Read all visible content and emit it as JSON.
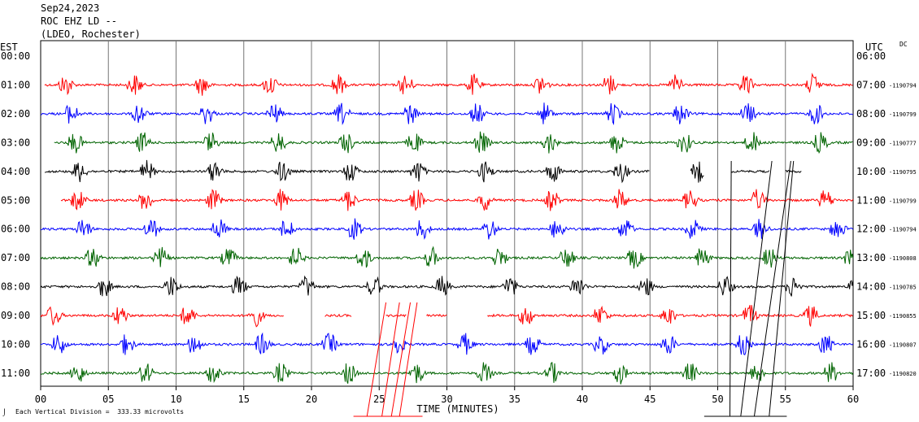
{
  "header": {
    "date": "Sep24,2023",
    "station": "ROC EHZ LD --",
    "network": "(LDEO, Rochester)"
  },
  "left_zone": "EST",
  "right_zone": "UTC",
  "dc_label": "DC",
  "footer": {
    "scale_note": "Each Vertical Division =  333.33 microvolts"
  },
  "colors": {
    "cycle": [
      "#ff0000",
      "#0000ff",
      "#006400",
      "#000000"
    ],
    "grid": "#777777",
    "glitch": "#ff0000",
    "glitch_late": "#000000"
  },
  "chart_data": {
    "type": "line",
    "title": "Sep24,2023 ROC EHZ LD -- (LDEO, Rochester)",
    "xlabel": "TIME (MINUTES)",
    "ylabel": "",
    "xlim": [
      0,
      60
    ],
    "x_ticks": [
      "00",
      "05",
      "10",
      "15",
      "20",
      "25",
      "30",
      "35",
      "40",
      "45",
      "50",
      "55",
      "60"
    ],
    "rows": [
      {
        "est": "00:00",
        "utc": "06:00",
        "offset": "",
        "color": "#ff0000",
        "segments": []
      },
      {
        "est": "01:00",
        "utc": "07:00",
        "offset": "-1190794",
        "color": "#ff0000",
        "segments": [
          [
            0.3,
            60
          ]
        ],
        "bursts": [
          1.5,
          6.6,
          11.6,
          16.6,
          21.6,
          26.6,
          31.6,
          36.6,
          41.6,
          46.6,
          51.7,
          56.7
        ]
      },
      {
        "est": "02:00",
        "utc": "08:00",
        "offset": "-1190799",
        "color": "#0000ff",
        "segments": [
          [
            0,
            60
          ]
        ],
        "bursts": [
          1.9,
          6.9,
          11.9,
          16.9,
          21.9,
          26.9,
          31.9,
          36.9,
          41.9,
          46.9,
          51.9,
          56.9
        ]
      },
      {
        "est": "03:00",
        "utc": "09:00",
        "offset": "-1190777",
        "color": "#006400",
        "segments": [
          [
            1,
            60
          ]
        ],
        "bursts": [
          2.2,
          7.2,
          12.2,
          17.2,
          22.2,
          27.2,
          32.2,
          37.2,
          42.2,
          47.2,
          52.2,
          57.2
        ]
      },
      {
        "est": "04:00",
        "utc": "10:00",
        "offset": "-1190795",
        "color": "#000000",
        "segments": [
          [
            0.3,
            45
          ],
          [
            48,
            49
          ],
          [
            51,
            53.8
          ],
          [
            55,
            56.2
          ]
        ],
        "bursts": [
          2.5,
          7.5,
          12.5,
          17.5,
          22.5,
          27.5,
          32.5,
          37.5,
          42.5,
          48.2
        ]
      },
      {
        "est": "05:00",
        "utc": "11:00",
        "offset": "-1190799",
        "color": "#ff0000",
        "segments": [
          [
            1.5,
            60
          ]
        ],
        "bursts": [
          2.4,
          7.4,
          12.4,
          17.4,
          22.4,
          27.4,
          32.4,
          37.4,
          42.4,
          47.6,
          52.6,
          57.6
        ]
      },
      {
        "est": "06:00",
        "utc": "12:00",
        "offset": "-1190794",
        "color": "#0000ff",
        "segments": [
          [
            0,
            60
          ]
        ],
        "bursts": [
          2.8,
          7.8,
          12.8,
          17.8,
          22.8,
          27.8,
          32.8,
          37.8,
          42.8,
          47.8,
          52.8,
          58.5
        ]
      },
      {
        "est": "07:00",
        "utc": "13:00",
        "offset": "-1190808",
        "color": "#006400",
        "segments": [
          [
            0,
            60
          ]
        ],
        "bursts": [
          3.5,
          8.5,
          13.5,
          18.5,
          23.5,
          28.5,
          33.5,
          38.5,
          43.5,
          48.5,
          53.5,
          59.5
        ]
      },
      {
        "est": "08:00",
        "utc": "14:00",
        "offset": "-1190785",
        "color": "#000000",
        "segments": [
          [
            0,
            60
          ]
        ],
        "bursts": [
          4.3,
          9.3,
          14.3,
          19.3,
          24.3,
          29.3,
          34.3,
          39.3,
          44.3,
          50.2,
          55.2,
          59.8
        ]
      },
      {
        "est": "09:00",
        "utc": "15:00",
        "offset": "-1190855",
        "color": "#ff0000",
        "segments": [
          [
            0,
            18
          ],
          [
            21,
            23
          ],
          [
            25.5,
            27
          ],
          [
            28.5,
            30
          ],
          [
            33,
            60
          ]
        ],
        "bursts": [
          0.6,
          5.5,
          10.5,
          15.5,
          35.5,
          41,
          46,
          52,
          56.5
        ]
      },
      {
        "est": "10:00",
        "utc": "16:00",
        "offset": "-1190807",
        "color": "#0000ff",
        "segments": [
          [
            0,
            60
          ]
        ],
        "bursts": [
          1.0,
          6.0,
          11.0,
          16.0,
          21.0,
          26.0,
          31.0,
          36.0,
          41.0,
          46.0,
          51.5,
          57.6
        ]
      },
      {
        "est": "11:00",
        "utc": "17:00",
        "offset": "-1190820",
        "color": "#006400",
        "segments": [
          [
            0,
            60
          ]
        ],
        "bursts": [
          2.4,
          7.4,
          12.4,
          17.4,
          22.4,
          27.4,
          32.4,
          37.4,
          42.4,
          47.6,
          52.6,
          58.0
        ]
      }
    ],
    "glitch_lines": [
      {
        "x1": 24.1,
        "x2": 25.5,
        "color": "#ff0000"
      },
      {
        "x1": 25.2,
        "x2": 26.5,
        "color": "#ff0000"
      },
      {
        "x1": 25.9,
        "x2": 27.3,
        "color": "#ff0000"
      },
      {
        "x1": 26.5,
        "x2": 27.8,
        "color": "#ff0000"
      },
      {
        "x1": 50.9,
        "x2": 51.0,
        "color": "#000000"
      },
      {
        "x1": 51.7,
        "x2": 54.0,
        "color": "#000000"
      },
      {
        "x1": 52.7,
        "x2": 55.4,
        "color": "#000000"
      },
      {
        "x1": 53.8,
        "x2": 55.6,
        "color": "#000000"
      }
    ]
  }
}
